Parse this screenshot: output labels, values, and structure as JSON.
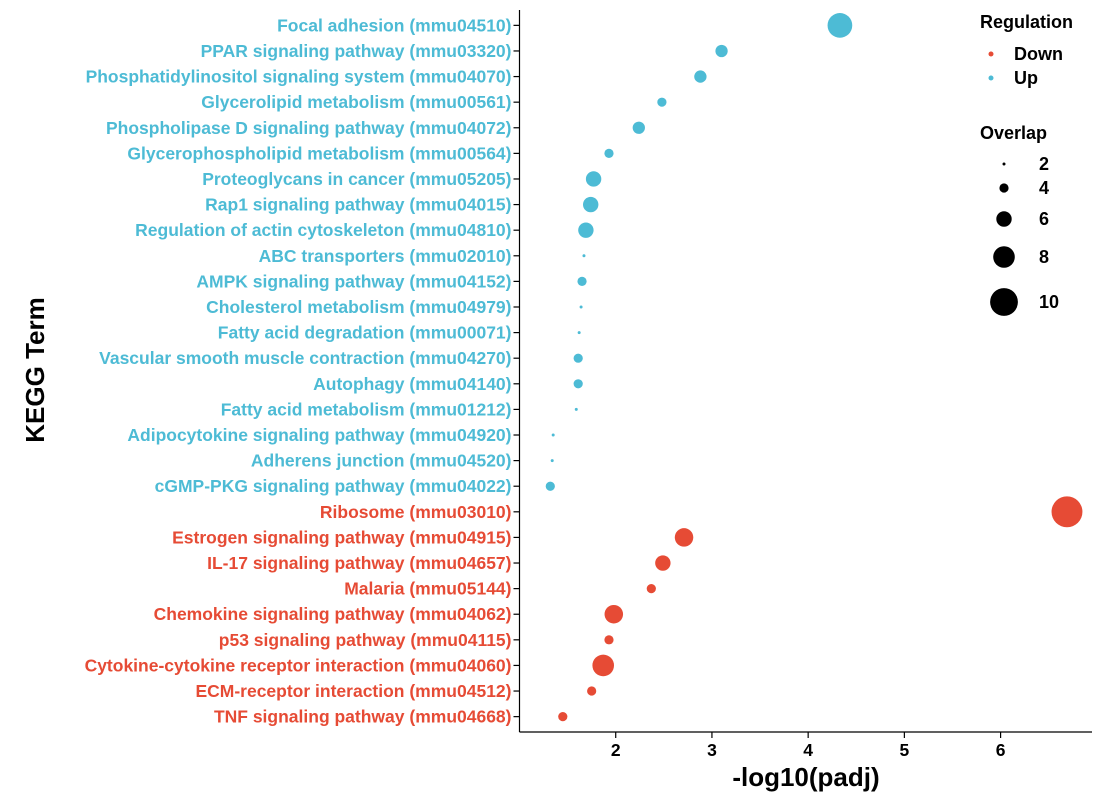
{
  "chart_data": {
    "type": "scatter",
    "title": "",
    "xlabel": "-log10(padj)",
    "ylabel": "KEGG Term",
    "xlim": [
      1.0,
      6.95
    ],
    "xticks": [
      2,
      3,
      4,
      5,
      6
    ],
    "grid": false,
    "colors": {
      "Down": "#E64B35",
      "Up": "#4DBBD5"
    },
    "legend_regulation": {
      "title": "Regulation",
      "entries": [
        "Down",
        "Up"
      ]
    },
    "legend_overlap": {
      "title": "Overlap",
      "values": [
        2,
        4,
        6,
        8,
        10
      ]
    },
    "points": [
      {
        "term": "Focal adhesion (mmu04510)",
        "x": 4.33,
        "overlap": 9,
        "regulation": "Up"
      },
      {
        "term": "PPAR signaling pathway (mmu03320)",
        "x": 3.1,
        "overlap": 5,
        "regulation": "Up"
      },
      {
        "term": "Phosphatidylinositol signaling system (mmu04070)",
        "x": 2.88,
        "overlap": 5,
        "regulation": "Up"
      },
      {
        "term": "Glycerolipid metabolism (mmu00561)",
        "x": 2.48,
        "overlap": 4,
        "regulation": "Up"
      },
      {
        "term": "Phospholipase D signaling pathway (mmu04072)",
        "x": 2.24,
        "overlap": 5,
        "regulation": "Up"
      },
      {
        "term": "Glycerophospholipid metabolism (mmu00564)",
        "x": 1.93,
        "overlap": 4,
        "regulation": "Up"
      },
      {
        "term": "Proteoglycans in cancer (mmu05205)",
        "x": 1.77,
        "overlap": 6,
        "regulation": "Up"
      },
      {
        "term": "Rap1 signaling pathway (mmu04015)",
        "x": 1.74,
        "overlap": 6,
        "regulation": "Up"
      },
      {
        "term": "Regulation of actin cytoskeleton (mmu04810)",
        "x": 1.69,
        "overlap": 6,
        "regulation": "Up"
      },
      {
        "term": "ABC transporters (mmu02010)",
        "x": 1.67,
        "overlap": 2,
        "regulation": "Up"
      },
      {
        "term": "AMPK signaling pathway (mmu04152)",
        "x": 1.65,
        "overlap": 4,
        "regulation": "Up"
      },
      {
        "term": "Cholesterol metabolism (mmu04979)",
        "x": 1.64,
        "overlap": 2,
        "regulation": "Up"
      },
      {
        "term": "Fatty acid degradation (mmu00071)",
        "x": 1.62,
        "overlap": 2,
        "regulation": "Up"
      },
      {
        "term": "Vascular smooth muscle contraction (mmu04270)",
        "x": 1.61,
        "overlap": 4,
        "regulation": "Up"
      },
      {
        "term": "Autophagy (mmu04140)",
        "x": 1.61,
        "overlap": 4,
        "regulation": "Up"
      },
      {
        "term": "Fatty acid metabolism (mmu01212)",
        "x": 1.59,
        "overlap": 2,
        "regulation": "Up"
      },
      {
        "term": "Adipocytokine signaling pathway (mmu04920)",
        "x": 1.35,
        "overlap": 2,
        "regulation": "Up"
      },
      {
        "term": "Adherens junction (mmu04520)",
        "x": 1.34,
        "overlap": 2,
        "regulation": "Up"
      },
      {
        "term": "cGMP-PKG signaling pathway (mmu04022)",
        "x": 1.32,
        "overlap": 4,
        "regulation": "Up"
      },
      {
        "term": "Ribosome (mmu03010)",
        "x": 6.69,
        "overlap": 11,
        "regulation": "Down"
      },
      {
        "term": "Estrogen signaling pathway (mmu04915)",
        "x": 2.71,
        "overlap": 7,
        "regulation": "Down"
      },
      {
        "term": "IL-17 signaling pathway (mmu04657)",
        "x": 2.49,
        "overlap": 6,
        "regulation": "Down"
      },
      {
        "term": "Malaria (mmu05144)",
        "x": 2.37,
        "overlap": 4,
        "regulation": "Down"
      },
      {
        "term": "Chemokine signaling pathway (mmu04062)",
        "x": 1.98,
        "overlap": 7,
        "regulation": "Down"
      },
      {
        "term": "p53 signaling pathway (mmu04115)",
        "x": 1.93,
        "overlap": 4,
        "regulation": "Down"
      },
      {
        "term": "Cytokine-cytokine receptor interaction (mmu04060)",
        "x": 1.87,
        "overlap": 8,
        "regulation": "Down"
      },
      {
        "term": "ECM-receptor interaction (mmu04512)",
        "x": 1.75,
        "overlap": 4,
        "regulation": "Down"
      },
      {
        "term": "TNF signaling pathway (mmu04668)",
        "x": 1.45,
        "overlap": 4,
        "regulation": "Down"
      }
    ]
  }
}
